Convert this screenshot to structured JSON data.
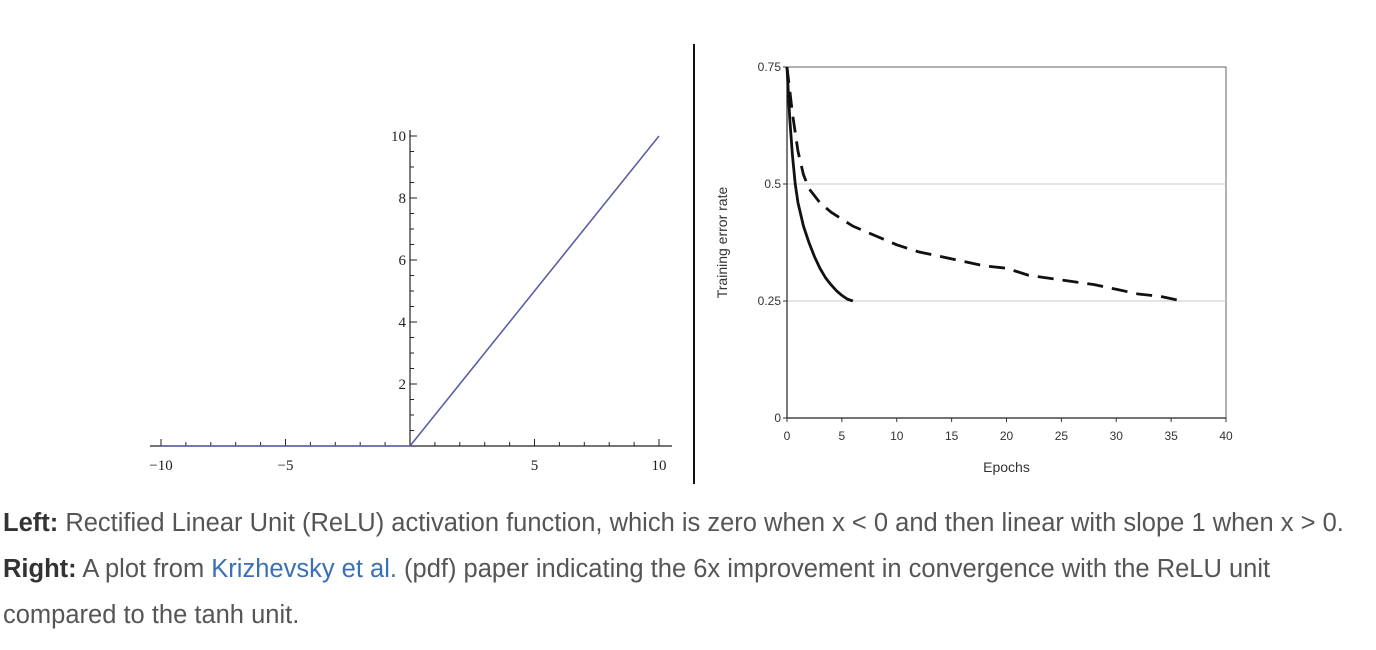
{
  "chart_data": [
    {
      "type": "line",
      "series": [
        {
          "x": [
            -10,
            0,
            10
          ],
          "y": [
            0,
            0,
            10
          ],
          "color": "#5b5ea6"
        }
      ],
      "xlim": [
        -10.5,
        10.5
      ],
      "ylim": [
        0,
        10
      ],
      "xticks": [
        -10,
        -5,
        5,
        10
      ],
      "xtick_labels": [
        "−10",
        "−5",
        "5",
        "10"
      ],
      "yticks": [
        2,
        4,
        6,
        8,
        10
      ],
      "ytick_labels": [
        "2",
        "4",
        "6",
        "8",
        "10"
      ],
      "grid": false
    },
    {
      "type": "line",
      "xlabel": "Epochs",
      "ylabel": "Training error rate",
      "xlim": [
        0,
        40
      ],
      "ylim": [
        0,
        0.75
      ],
      "xticks": [
        0,
        5,
        10,
        15,
        20,
        25,
        30,
        35,
        40
      ],
      "xtick_labels": [
        "0",
        "5",
        "10",
        "15",
        "20",
        "25",
        "30",
        "35",
        "40"
      ],
      "yticks": [
        0,
        0.25,
        0.5,
        0.75
      ],
      "ytick_labels": [
        "0",
        "0.25",
        "0.5",
        "0.75"
      ],
      "grid": true,
      "series": [
        {
          "style": "solid",
          "color": "#111111",
          "x": [
            0,
            0.25,
            0.5,
            0.75,
            1,
            1.5,
            2,
            2.5,
            3,
            3.5,
            4,
            4.5,
            5,
            5.5,
            6
          ],
          "y": [
            0.75,
            0.64,
            0.56,
            0.5,
            0.46,
            0.41,
            0.375,
            0.345,
            0.32,
            0.3,
            0.285,
            0.272,
            0.262,
            0.254,
            0.25
          ]
        },
        {
          "style": "dashed",
          "color": "#111111",
          "x": [
            0,
            0.5,
            1,
            1.5,
            2,
            3,
            4,
            5,
            6,
            8,
            10,
            12,
            15,
            18,
            20,
            22,
            25,
            28,
            30,
            32,
            34,
            36
          ],
          "y": [
            0.75,
            0.65,
            0.57,
            0.52,
            0.49,
            0.46,
            0.44,
            0.425,
            0.41,
            0.39,
            0.37,
            0.355,
            0.34,
            0.325,
            0.32,
            0.305,
            0.295,
            0.285,
            0.275,
            0.265,
            0.26,
            0.25
          ]
        }
      ]
    }
  ],
  "caption": {
    "left_label": "Left:",
    "left_text": " Rectified Linear Unit (ReLU) activation function, which is zero when x < 0 and then linear with slope 1 when x > 0. ",
    "right_label": "Right:",
    "right_text_before_link": " A plot from ",
    "link_text": "Krizhevsky et al.",
    "right_text_after_link": " (pdf) paper indicating the 6x improvement in convergence with the ReLU unit compared to the tanh unit."
  }
}
